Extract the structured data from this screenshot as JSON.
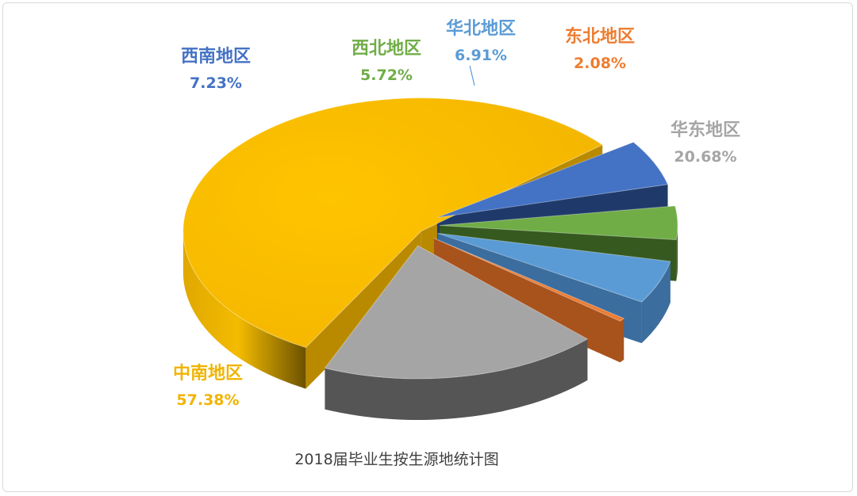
{
  "chart_data": {
    "type": "pie",
    "title": "2018届毕业生按生源地统计图",
    "categories": [
      "中南地区",
      "西南地区",
      "西北地区",
      "华北地区",
      "东北地区",
      "华东地区"
    ],
    "values": [
      57.38,
      7.23,
      5.72,
      6.91,
      2.08,
      20.68
    ],
    "value_labels": [
      "57.38%",
      "7.23%",
      "5.72%",
      "6.91%",
      "2.08%",
      "20.68%"
    ],
    "unit": "%",
    "colors": [
      "#f5b800",
      "#4472c4",
      "#70ad47",
      "#5b9bd5",
      "#ed7d31",
      "#a5a5a5"
    ],
    "label_colors": [
      "#f0b400",
      "#4472c4",
      "#70ad47",
      "#5b9bd5",
      "#ed7d31",
      "#a5a5a5"
    ],
    "style": "3d-exploded-pie",
    "legend": "none"
  }
}
